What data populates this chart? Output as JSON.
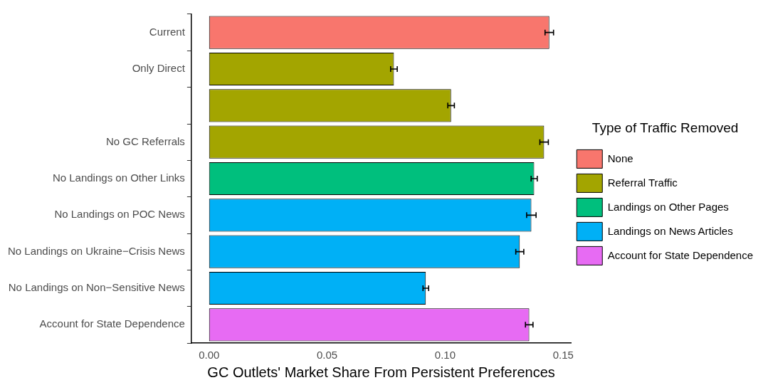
{
  "chart_data": {
    "type": "bar",
    "orientation": "horizontal",
    "stacked": true,
    "categories": [
      "Current",
      "Only Direct",
      null,
      "No GC Referrals",
      "No Landings on Other Links",
      "No Landings on POC News",
      "No Landings on Ukraine−Crisis News",
      "No Landings on Non−Sensitive News",
      "Account for State Dependence"
    ],
    "series": [
      {
        "name": "None",
        "color": "#f8766d",
        "values": [
          0.1441,
          null,
          null,
          null,
          null,
          null,
          null,
          null,
          null
        ],
        "errors": [
          0.0018,
          null,
          null,
          null,
          null,
          null,
          null,
          null,
          null
        ]
      },
      {
        "name": "Referral Traffic",
        "color": "#a3a500",
        "values": [
          null,
          0.0783,
          0.1025,
          0.1419,
          null,
          null,
          null,
          null,
          null
        ],
        "errors": [
          null,
          0.0014,
          0.0014,
          0.0018,
          null,
          null,
          null,
          null,
          null
        ]
      },
      {
        "name": "Landings on Other Pages",
        "color": "#00bf7d",
        "values": [
          null,
          null,
          null,
          null,
          0.1377,
          null,
          null,
          null,
          null
        ],
        "errors": [
          null,
          null,
          null,
          null,
          0.0013,
          null,
          null,
          null,
          null
        ]
      },
      {
        "name": "Landings on News Articles",
        "color": "#00b0f6",
        "values": [
          null,
          null,
          null,
          null,
          null,
          0.1365,
          0.1316,
          0.0918,
          null
        ],
        "errors": [
          null,
          null,
          null,
          null,
          null,
          0.002,
          0.0017,
          0.0012,
          null
        ]
      },
      {
        "name": "Account for State Dependence",
        "color": "#e76bf3",
        "values": [
          null,
          null,
          null,
          null,
          null,
          null,
          null,
          null,
          0.1356
        ],
        "errors": [
          null,
          null,
          null,
          null,
          null,
          null,
          null,
          null,
          0.0016
        ]
      }
    ],
    "xlim": [
      -0.0075,
      0.1533
    ],
    "xticks": [
      {
        "value": 0,
        "label": "0.00"
      },
      {
        "value": 0.05,
        "label": "0.05"
      },
      {
        "value": 0.1,
        "label": "0.10"
      },
      {
        "value": 0.15,
        "label": "0.15"
      }
    ],
    "xlabel": "GC Outlets' Market Share From Persistent Preferences",
    "legend": "right",
    "legend_title": "Type of Traffic Removed",
    "grid": false
  }
}
